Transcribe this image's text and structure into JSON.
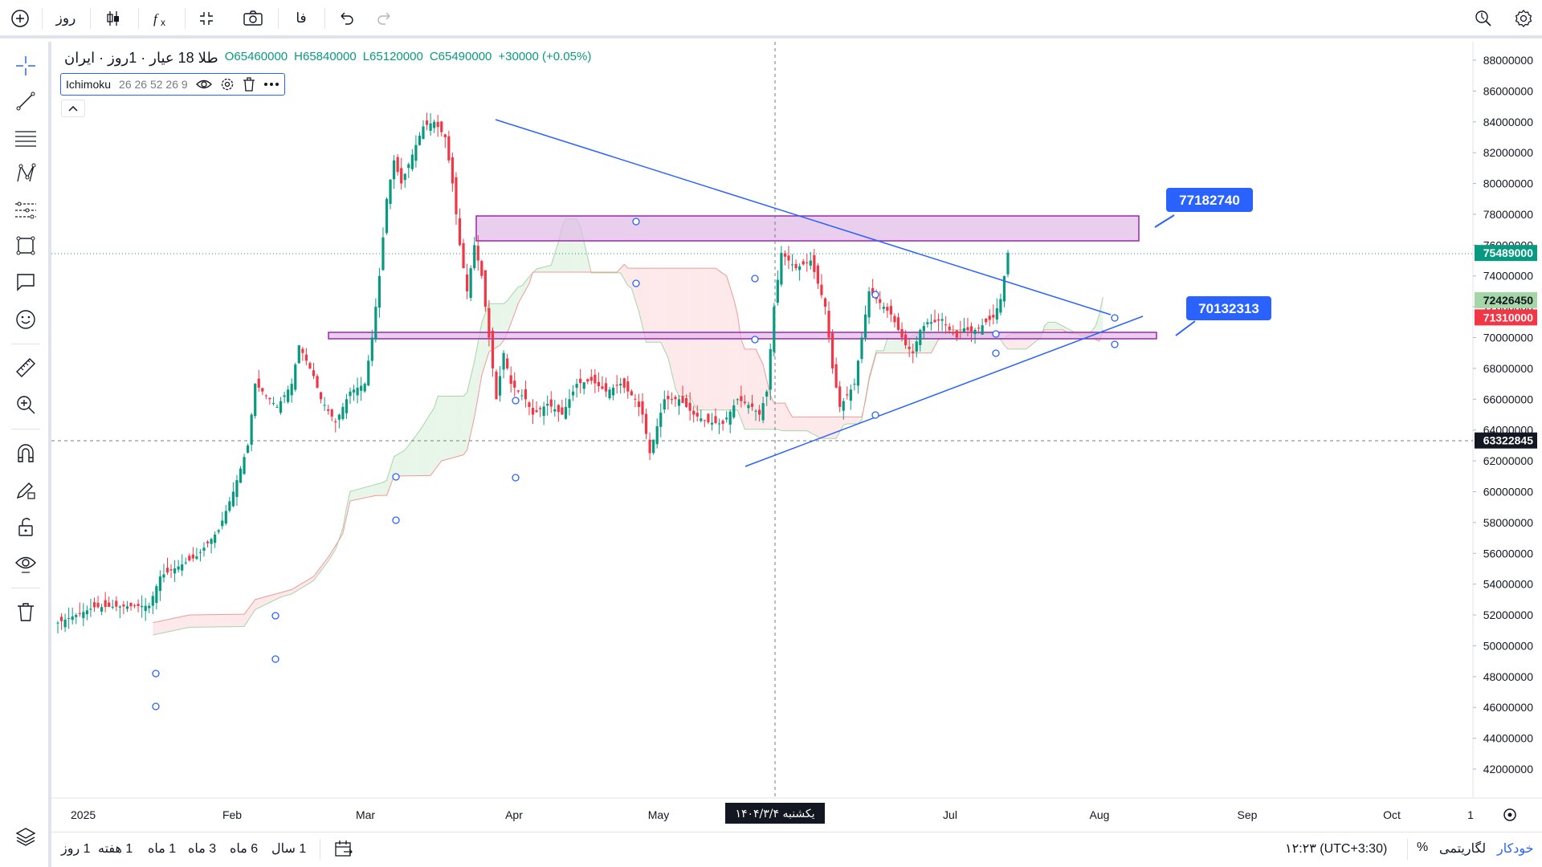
{
  "topbar": {
    "add_symbol": "+",
    "interval": "روز",
    "language": "فا"
  },
  "legend": {
    "symbol": "طلا 18 عیار · 1روز · ایران",
    "open": "O65460000",
    "high": "H65840000",
    "low": "L65120000",
    "close": "C65490000",
    "change": "+30000 (+0.05%)"
  },
  "indicator": {
    "name": "Ichimoku",
    "params": "26 26 52 26 9"
  },
  "price_axis": {
    "ticks": [
      "88000000",
      "86000000",
      "84000000",
      "82000000",
      "80000000",
      "78000000",
      "76000000",
      "74000000",
      "72000000",
      "70000000",
      "68000000",
      "66000000",
      "64000000",
      "62000000",
      "60000000",
      "58000000",
      "56000000",
      "54000000",
      "52000000",
      "50000000",
      "48000000",
      "46000000",
      "44000000",
      "42000000"
    ],
    "last_price": "75489000",
    "ichimoku_a": "72426450",
    "ichimoku_b": "71310000",
    "crosshair_price": "63322845"
  },
  "time_axis": {
    "labels": [
      "2025",
      "Feb",
      "Mar",
      "Apr",
      "May",
      "Jul",
      "Aug",
      "Sep",
      "Oct",
      "1"
    ],
    "crosshair_date": "یکشنبه ۱۴۰۴/۳/۴"
  },
  "annotations": {
    "upper_label": "77182740",
    "lower_label": "70132313"
  },
  "bottombar": {
    "ranges": [
      "1 روز",
      "1 هفته",
      "1 ماه",
      "3 ماه",
      "6 ماه",
      "1 سال"
    ],
    "timezone": "۱۲:۲۳ (UTC+3:30)",
    "percent": "%",
    "log": "لگاریتمی",
    "auto": "خودکار"
  },
  "colors": {
    "up": "#089981",
    "down": "#f23645",
    "trendline": "#2962ff",
    "zone_fill": "#e1bee7",
    "zone_border": "#9c27b0",
    "kumo_green": "#a5d6a7",
    "kumo_red": "#ef9a9a"
  }
}
